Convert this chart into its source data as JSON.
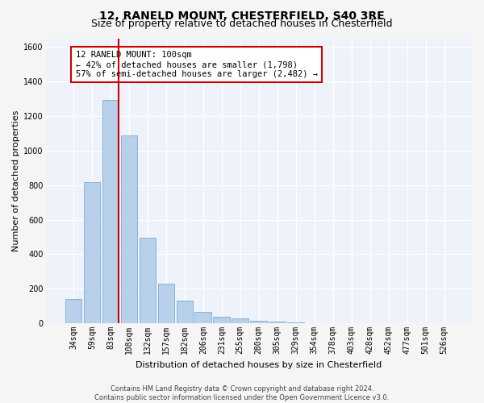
{
  "title": "12, RANELD MOUNT, CHESTERFIELD, S40 3RE",
  "subtitle": "Size of property relative to detached houses in Chesterfield",
  "xlabel": "Distribution of detached houses by size in Chesterfield",
  "ylabel": "Number of detached properties",
  "footer_line1": "Contains HM Land Registry data © Crown copyright and database right 2024.",
  "footer_line2": "Contains public sector information licensed under the Open Government Licence v3.0.",
  "categories": [
    "34sqm",
    "59sqm",
    "83sqm",
    "108sqm",
    "132sqm",
    "157sqm",
    "182sqm",
    "206sqm",
    "231sqm",
    "255sqm",
    "280sqm",
    "305sqm",
    "329sqm",
    "354sqm",
    "378sqm",
    "403sqm",
    "428sqm",
    "452sqm",
    "477sqm",
    "501sqm",
    "526sqm"
  ],
  "values": [
    140,
    815,
    1295,
    1090,
    495,
    230,
    130,
    65,
    37,
    27,
    15,
    10,
    5,
    2,
    0,
    0,
    0,
    0,
    0,
    0,
    0
  ],
  "bar_color": "#b8d0ea",
  "bar_edge_color": "#7aadd4",
  "vline_color": "#cc0000",
  "annotation_text": "12 RANELD MOUNT: 100sqm\n← 42% of detached houses are smaller (1,798)\n57% of semi-detached houses are larger (2,482) →",
  "annotation_box_color": "#cc0000",
  "ylim": [
    0,
    1650
  ],
  "yticks": [
    0,
    200,
    400,
    600,
    800,
    1000,
    1200,
    1400,
    1600
  ],
  "background_color": "#eef2fb",
  "grid_color": "#ffffff",
  "fig_bg_color": "#f5f5f5",
  "title_fontsize": 10,
  "subtitle_fontsize": 9,
  "axis_label_fontsize": 8,
  "tick_fontsize": 7,
  "footer_fontsize": 6,
  "annotation_fontsize": 7.5
}
